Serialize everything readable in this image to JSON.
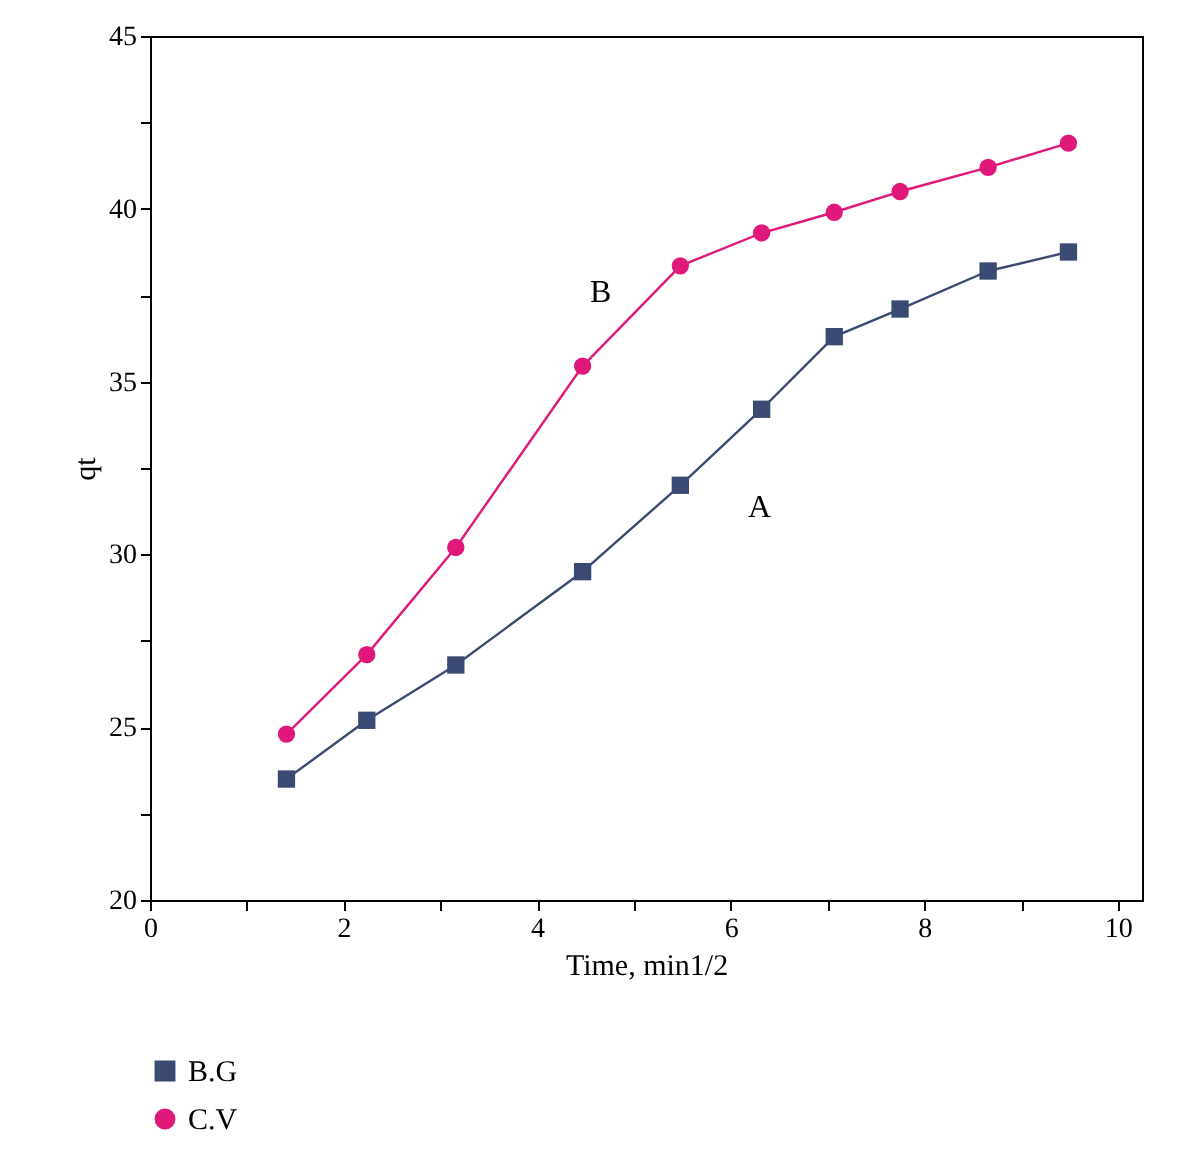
{
  "chart_data": {
    "type": "line",
    "xlabel": "Time, min1/2",
    "ylabel": "qt",
    "xlim": [
      0,
      10.25
    ],
    "xticks": [
      0,
      {
        "value": 1,
        "label": null
      },
      2,
      {
        "value": 3,
        "label": null
      },
      4,
      {
        "value": 5,
        "label": null
      },
      6,
      {
        "value": 7,
        "label": null
      },
      8,
      {
        "value": 9,
        "label": null
      },
      10
    ],
    "ylim": [
      20,
      45
    ],
    "yticks": [
      20,
      {
        "value": 22.5,
        "label": null
      },
      25,
      {
        "value": 27.5,
        "label": null
      },
      30,
      {
        "value": 32.5,
        "label": null
      },
      35,
      {
        "value": 37.5,
        "label": null
      },
      40,
      {
        "value": 42.5,
        "label": null
      },
      45
    ],
    "x": [
      1.41,
      2.24,
      3.16,
      4.47,
      5.48,
      6.32,
      7.07,
      7.75,
      8.66,
      9.49
    ],
    "series": [
      {
        "name": "B.G",
        "color": "#3b4a72",
        "marker": "square",
        "values": [
          23.5,
          25.2,
          26.8,
          29.5,
          32.0,
          34.2,
          36.3,
          37.1,
          38.2,
          38.75
        ]
      },
      {
        "name": "C.V",
        "color": "#e0187a",
        "marker": "circle",
        "values": [
          24.8,
          27.1,
          30.2,
          35.45,
          38.35,
          39.3,
          39.9,
          40.5,
          41.2,
          41.9
        ]
      }
    ],
    "annotations": [
      "B",
      "A"
    ],
    "grid": false,
    "legend": "bottom",
    "line_style": "solid"
  }
}
